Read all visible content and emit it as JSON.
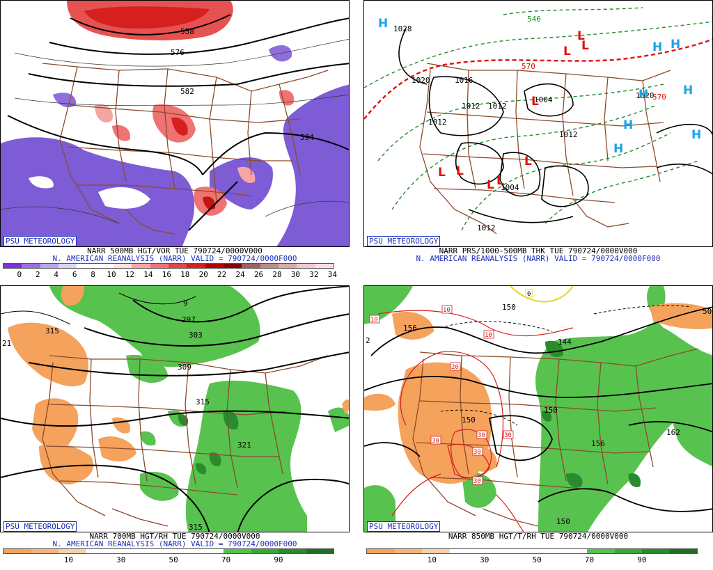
{
  "panels": [
    {
      "id": "vor500",
      "badge": "PSU METEOROLOGY",
      "line1": "NARR 500MB HGT/VOR TUE 790724/0000V000",
      "line2": "N. AMERICAN REANALYSIS (NARR) VALID = 790724/0000F000",
      "colorbar": {
        "colors": [
          "#7d2fd8",
          "#9a6ee0",
          "#b6a4ee",
          "#d8d3f7",
          "#ffffff",
          "#ffffff",
          "#ffe0e0",
          "#f6a5a5",
          "#ef7373",
          "#e64545",
          "#d61f1f",
          "#b50000",
          "#8c0000",
          "#a06060",
          "#c08a8a",
          "#d8aaaa",
          "#f1c8cf",
          "#f7dfe3"
        ],
        "ticks": [
          "0",
          "2",
          "4",
          "6",
          "8",
          "10",
          "12",
          "14",
          "16",
          "18",
          "20",
          "22",
          "24",
          "26",
          "28",
          "30",
          "32",
          "34"
        ]
      },
      "contour_labels": [
        "558",
        "576",
        "582",
        "594"
      ]
    },
    {
      "id": "sfc",
      "badge": "PSU METEOROLOGY",
      "line1": "NARR PRS/1000-500MB THK TUE 790724/0000V000",
      "line2": "N. AMERICAN REANALYSIS (NARR) VALID = 790724/0000F000",
      "pressure_labels": [
        "1028",
        "1020",
        "1016",
        "1012",
        "1012",
        "1012",
        "1004",
        "1012",
        "1004",
        "1020",
        "1012"
      ],
      "thickness_labels": [
        "570",
        "570",
        "546"
      ],
      "highs": [
        "H",
        "H",
        "H",
        "H",
        "H",
        "H",
        "H",
        "H"
      ],
      "lows": [
        "L",
        "L",
        "L",
        "L",
        "L",
        "L",
        "L",
        "L",
        "L"
      ]
    },
    {
      "id": "rh700",
      "badge": "PSU METEOROLOGY",
      "line1": "NARR 700MB HGT/RH TUE 790724/0000V000",
      "line2": "N. AMERICAN REANALYSIS (NARR) VALID = 790724/0000F000",
      "colorbar": {
        "colors": [
          "#f5a25c",
          "#f5b57c",
          "#fad0a8",
          "#ffffff",
          "#ffffff",
          "#ffffff",
          "#ffffff",
          "#ffffff",
          "#54c24d",
          "#38a838",
          "#2a8a2e",
          "#1f6e24"
        ],
        "ticks": [
          "10",
          "30",
          "50",
          "70",
          "90"
        ]
      },
      "contour_labels": [
        "315",
        "297",
        "303",
        "309",
        "315",
        "321",
        "315",
        "21",
        "9"
      ]
    },
    {
      "id": "t850",
      "badge": "PSU METEOROLOGY",
      "line1": "NARR 850MB HGT/T/RH TUE 790724/0000V000",
      "line2": "",
      "colorbar": {
        "colors": [
          "#f5a25c",
          "#f5b57c",
          "#fad0a8",
          "#ffffff",
          "#ffffff",
          "#ffffff",
          "#ffffff",
          "#ffffff",
          "#54c24d",
          "#38a838",
          "#2a8a2e",
          "#1f6e24"
        ],
        "ticks": [
          "10",
          "30",
          "50",
          "70",
          "90"
        ]
      },
      "height_labels": [
        "156",
        "144",
        "150",
        "150",
        "156",
        "162",
        "150",
        "150",
        "2",
        "50"
      ],
      "temp_labels": [
        "10",
        "10",
        "10",
        "20",
        "30",
        "30",
        "30",
        "30",
        "30",
        "0"
      ]
    }
  ]
}
